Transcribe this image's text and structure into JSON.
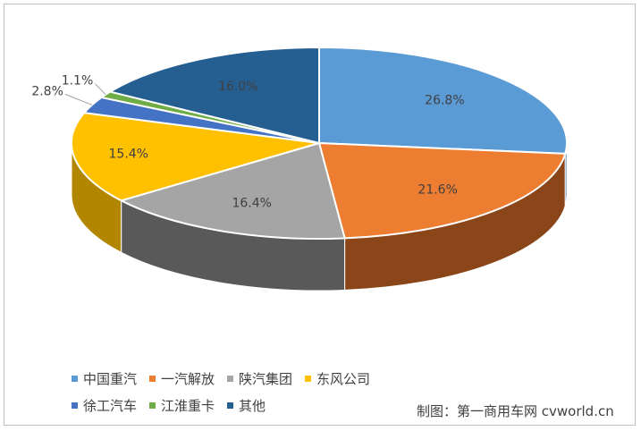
{
  "chart_data": {
    "type": "pie",
    "categories": [
      "中国重汽",
      "一汽解放",
      "陕汽集团",
      "东风公司",
      "徐工汽车",
      "江淮重卡",
      "其他"
    ],
    "values": [
      26.8,
      21.6,
      16.4,
      15.4,
      2.8,
      1.1,
      16.0
    ],
    "labels": [
      "26.8%",
      "21.6%",
      "16.4%",
      "15.4%",
      "2.8%",
      "1.1%",
      "16.0%"
    ],
    "colors": [
      "#5b9bd5",
      "#ed7d31",
      "#a5a5a5",
      "#ffc000",
      "#4472c4",
      "#70ad47",
      "#255e91"
    ],
    "side_colors": [
      "#3a6d9e",
      "#8a4518",
      "#595959",
      "#b38600",
      "#2a4a88",
      "#437030",
      "#163a5c"
    ],
    "legend_position": "bottom-left",
    "style": "3d"
  },
  "credit": "制图：第一商用车网 cvworld.cn"
}
